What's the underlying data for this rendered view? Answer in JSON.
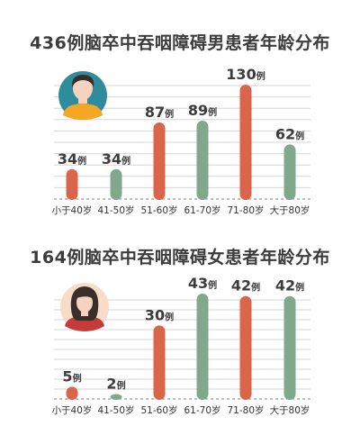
{
  "chart_data": [
    {
      "type": "bar",
      "title": "436例脑卒中吞咽障碍男患者年龄分布",
      "categories": [
        "小于40岁",
        "41-50岁",
        "51-60岁",
        "61-70岁",
        "71-80岁",
        "大于80岁"
      ],
      "values": [
        34,
        34,
        87,
        89,
        130,
        62
      ],
      "value_unit": "例",
      "colors": [
        "#d9654a",
        "#7fa98a",
        "#d9654a",
        "#7fa98a",
        "#d9654a",
        "#7fa98a"
      ],
      "ylim": [
        0,
        130
      ],
      "grid": true,
      "icon": "male-avatar-icon"
    },
    {
      "type": "bar",
      "title": "164例脑卒中吞咽障碍女患者年龄分布",
      "categories": [
        "小于40岁",
        "41-50岁",
        "51-60岁",
        "61-70岁",
        "71-80岁",
        "大于80岁"
      ],
      "values": [
        5,
        2,
        30,
        43,
        42,
        42
      ],
      "value_unit": "例",
      "colors": [
        "#d9654a",
        "#7fa98a",
        "#d9654a",
        "#7fa98a",
        "#d9654a",
        "#7fa98a"
      ],
      "ylim": [
        0,
        43
      ],
      "grid": true,
      "icon": "female-avatar-icon"
    }
  ]
}
